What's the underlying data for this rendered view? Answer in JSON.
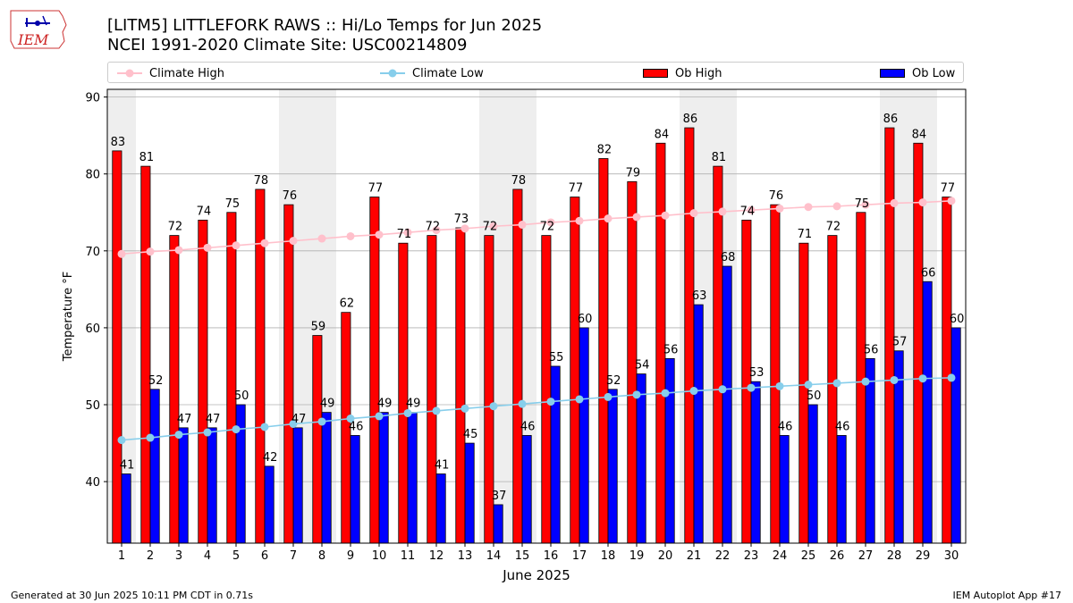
{
  "title_line1": "[LITM5] LITTLEFORK RAWS :: Hi/Lo Temps for Jun 2025",
  "title_line2": "NCEI 1991-2020 Climate Site: USC00214809",
  "logo_text": "IEM",
  "footer_left": "Generated at 30 Jun 2025 10:11 PM CDT in 0.71s",
  "footer_right": "IEM Autoplot App #17",
  "legend": {
    "climate_high": "Climate High",
    "climate_low": "Climate Low",
    "ob_high": "Ob High",
    "ob_low": "Ob Low"
  },
  "colors": {
    "ob_high": "#ff0000",
    "ob_low": "#0000ff",
    "climate_high": "#ffc0cb",
    "climate_low": "#87ceeb",
    "weekend_shade": "#eeeeee",
    "grid": "#b0b0b0"
  },
  "chart_data": {
    "type": "bar",
    "xlabel": "June 2025",
    "ylabel": "Temperature °F",
    "ylim": [
      32,
      91
    ],
    "yticks": [
      40,
      50,
      60,
      70,
      80,
      90
    ],
    "grid": "horizontal",
    "legend_position": "top",
    "categories": [
      "1",
      "2",
      "3",
      "4",
      "5",
      "6",
      "7",
      "8",
      "9",
      "10",
      "11",
      "12",
      "13",
      "14",
      "15",
      "16",
      "17",
      "18",
      "19",
      "20",
      "21",
      "22",
      "23",
      "24",
      "25",
      "26",
      "27",
      "28",
      "29",
      "30"
    ],
    "shaded_days": [
      1,
      7,
      8,
      14,
      15,
      21,
      22,
      28,
      29
    ],
    "series": [
      {
        "name": "Ob High",
        "kind": "bar",
        "values": [
          83,
          81,
          72,
          74,
          75,
          78,
          76,
          59,
          62,
          77,
          71,
          72,
          73,
          72,
          78,
          72,
          77,
          82,
          79,
          84,
          86,
          81,
          74,
          76,
          71,
          72,
          75,
          86,
          84,
          77
        ]
      },
      {
        "name": "Ob Low",
        "kind": "bar",
        "values": [
          41,
          52,
          47,
          47,
          50,
          42,
          47,
          49,
          46,
          49,
          49,
          41,
          45,
          37,
          46,
          55,
          60,
          52,
          54,
          56,
          63,
          68,
          53,
          46,
          50,
          46,
          56,
          57,
          66,
          60
        ]
      },
      {
        "name": "Climate High",
        "kind": "line",
        "values": [
          69.6,
          69.9,
          70.1,
          70.4,
          70.7,
          71.0,
          71.3,
          71.6,
          71.9,
          72.1,
          72.4,
          72.7,
          72.9,
          73.2,
          73.4,
          73.7,
          73.9,
          74.2,
          74.4,
          74.6,
          74.9,
          75.1,
          75.3,
          75.5,
          75.7,
          75.8,
          76.0,
          76.2,
          76.3,
          76.5
        ]
      },
      {
        "name": "Climate Low",
        "kind": "line",
        "values": [
          45.4,
          45.7,
          46.1,
          46.4,
          46.8,
          47.1,
          47.5,
          47.8,
          48.2,
          48.5,
          48.9,
          49.2,
          49.5,
          49.8,
          50.1,
          50.4,
          50.7,
          51.0,
          51.3,
          51.5,
          51.8,
          52.0,
          52.2,
          52.4,
          52.6,
          52.8,
          53.0,
          53.2,
          53.4,
          53.5
        ]
      }
    ]
  }
}
